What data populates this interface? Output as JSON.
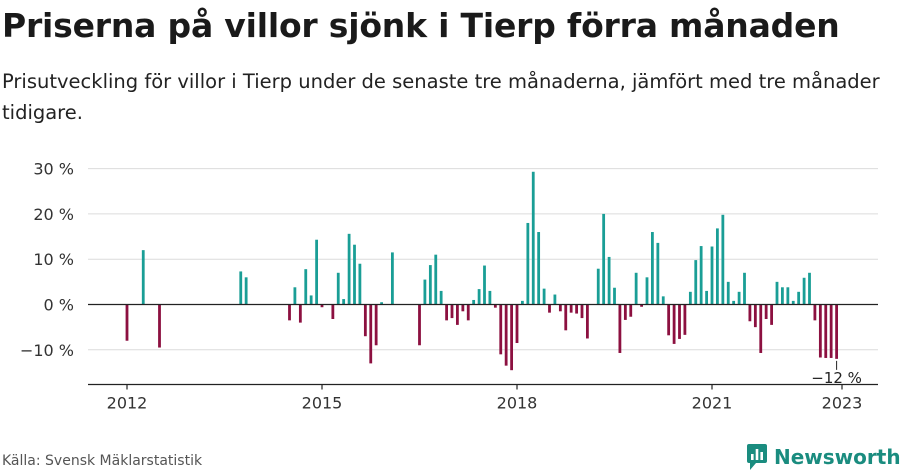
{
  "header": {
    "title": "Priserna på villor sjönk i Tierp förra månaden",
    "subtitle": "Prisutveckling för villor i Tierp under de senaste tre månaderna, jämfört med tre månader tidigare."
  },
  "footer": {
    "source": "Källa: Svensk Mäklarstatistik",
    "brand": "Newsworthy"
  },
  "colors": {
    "positive": "#1a9e96",
    "negative": "#8c1040",
    "brand": "#1a8c7f"
  },
  "icons": {
    "brand_logo": "newsworthy-logo-icon"
  },
  "chart_data": {
    "type": "bar",
    "title": "",
    "xlabel": "",
    "ylabel": "",
    "ylim": [
      -17,
      32
    ],
    "y_ticks": [
      {
        "value": 30,
        "label": "30 %"
      },
      {
        "value": 20,
        "label": "20 %"
      },
      {
        "value": 10,
        "label": "10 %"
      },
      {
        "value": 0,
        "label": "0 %"
      },
      {
        "value": -10,
        "label": "−10 %"
      }
    ],
    "x_ticks": [
      {
        "value": 2012,
        "label": "2012"
      },
      {
        "value": 2015,
        "label": "2015"
      },
      {
        "value": 2018,
        "label": "2018"
      },
      {
        "value": 2021,
        "label": "2021"
      },
      {
        "value": 2023,
        "label": "2023"
      }
    ],
    "grid": true,
    "annotation": {
      "label": "−12 %",
      "x": 2022.917,
      "y": -12
    },
    "series": [
      {
        "x": [
          2012.0,
          2012.25,
          2012.5,
          2013.75,
          2013.833,
          2014.5,
          2014.583,
          2014.667,
          2014.75,
          2014.833,
          2014.917,
          2015.0,
          2015.167,
          2015.25,
          2015.333,
          2015.417,
          2015.5,
          2015.583,
          2015.667,
          2015.75,
          2015.833,
          2015.917,
          2016.083,
          2016.5,
          2016.583,
          2016.667,
          2016.75,
          2016.833,
          2016.917,
          2017.0,
          2017.083,
          2017.167,
          2017.25,
          2017.333,
          2017.417,
          2017.5,
          2017.583,
          2017.667,
          2017.75,
          2017.833,
          2017.917,
          2018.0,
          2018.083,
          2018.167,
          2018.25,
          2018.333,
          2018.417,
          2018.5,
          2018.583,
          2018.667,
          2018.75,
          2018.833,
          2018.917,
          2019.0,
          2019.083,
          2019.25,
          2019.333,
          2019.417,
          2019.5,
          2019.583,
          2019.667,
          2019.75,
          2019.833,
          2019.917,
          2020.0,
          2020.083,
          2020.167,
          2020.25,
          2020.333,
          2020.417,
          2020.5,
          2020.583,
          2020.667,
          2020.75,
          2020.833,
          2020.917,
          2021.0,
          2021.083,
          2021.167,
          2021.25,
          2021.333,
          2021.417,
          2021.5,
          2021.583,
          2021.667,
          2021.75,
          2021.833,
          2021.917,
          2022.0,
          2022.083,
          2022.167,
          2022.25,
          2022.333,
          2022.417,
          2022.5,
          2022.583,
          2022.667,
          2022.75,
          2022.833,
          2022.917
        ],
        "values": [
          -8,
          12,
          -9.5,
          7.3,
          6,
          -3.5,
          3.8,
          -4,
          7.8,
          2,
          14.3,
          -0.6,
          -3.2,
          7,
          1.2,
          15.6,
          13.2,
          9,
          -7,
          -13,
          -9,
          0.5,
          11.5,
          -9,
          5.5,
          8.7,
          11,
          3,
          -3.5,
          -3,
          -4.5,
          -1.5,
          -3.5,
          1,
          3.4,
          8.6,
          3,
          -0.7,
          -11,
          -13.5,
          -14.5,
          -8.5,
          0.8,
          18,
          29.3,
          16,
          3.5,
          -1.8,
          2.2,
          -1.5,
          -5.7,
          -1.8,
          -2,
          -3,
          -7.5,
          7.9,
          20,
          10.5,
          3.7,
          -10.7,
          -3.4,
          -2.7,
          7,
          -0.5,
          6,
          16,
          13.6,
          1.8,
          -6.8,
          -8.7,
          -7.6,
          -6.7,
          2.8,
          9.8,
          12.9,
          3,
          12.8,
          16.8,
          19.8,
          5,
          0.8,
          2.8,
          7,
          -3.7,
          -5,
          -10.7,
          -3.2,
          -4.5,
          5,
          3.8,
          3.8,
          0.8,
          2.8,
          5.9,
          7,
          -3.5,
          -11.7,
          -11.8,
          -11.8,
          -12
        ]
      }
    ]
  }
}
